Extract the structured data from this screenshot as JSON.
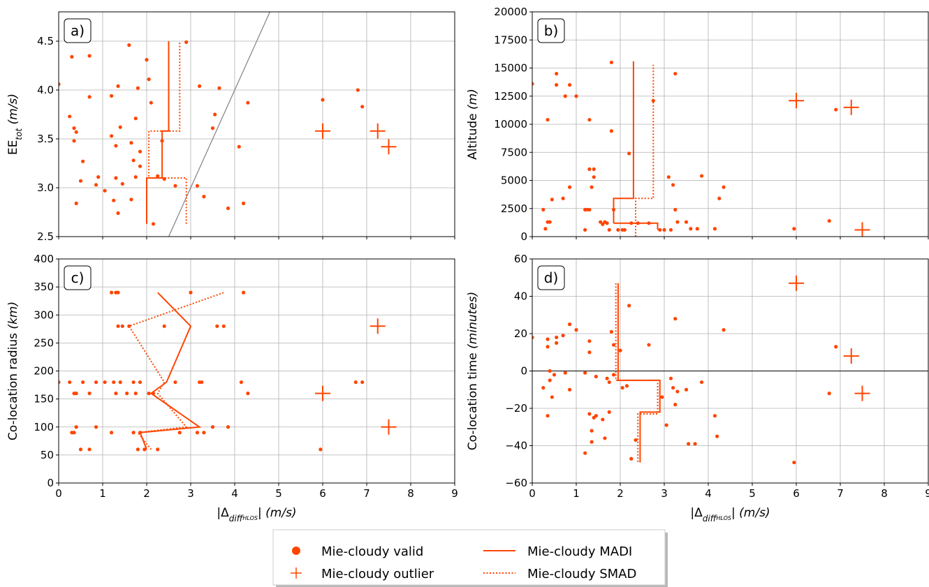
{
  "colors": {
    "series": "#ff4500",
    "grid": "#b0b0b0",
    "identity_line": "#808080",
    "zero_line": "#000000"
  },
  "legend": {
    "items": [
      {
        "label": "Mie-cloudy valid",
        "marker": "dot"
      },
      {
        "label": "Mie-cloudy outlier",
        "marker": "plus"
      },
      {
        "label": "Mie-cloudy MADI",
        "marker": "solid-line"
      },
      {
        "label": "Mie-cloudy SMAD",
        "marker": "dotted-line"
      }
    ]
  },
  "chart_data": [
    {
      "panel": "a)",
      "type": "scatter",
      "xlabel": "",
      "ylabel_main": "EE",
      "ylabel_sub": "tot",
      "ylabel_unit": "(m/s)",
      "xlim": [
        0,
        9
      ],
      "ylim": [
        2.5,
        4.8
      ],
      "xticks": [
        0,
        1,
        2,
        3,
        4,
        5,
        6,
        7,
        8,
        9
      ],
      "yticks": [
        2.5,
        3.0,
        3.5,
        4.0,
        4.5
      ],
      "ytick_labels": [
        "2.5",
        "3.0",
        "3.5",
        "4.0",
        "4.5"
      ],
      "show_xtick_labels": false,
      "grid": true,
      "valid": [
        [
          0.0,
          4.06
        ],
        [
          0.25,
          3.73
        ],
        [
          0.3,
          4.34
        ],
        [
          0.35,
          3.61
        ],
        [
          0.35,
          3.48
        ],
        [
          0.4,
          3.57
        ],
        [
          0.4,
          2.84
        ],
        [
          0.5,
          3.07
        ],
        [
          0.55,
          3.27
        ],
        [
          0.7,
          4.35
        ],
        [
          0.7,
          3.93
        ],
        [
          0.85,
          3.03
        ],
        [
          0.9,
          3.11
        ],
        [
          1.05,
          2.97
        ],
        [
          1.2,
          3.94
        ],
        [
          1.2,
          3.53
        ],
        [
          1.25,
          2.87
        ],
        [
          1.3,
          3.43
        ],
        [
          1.3,
          3.1
        ],
        [
          1.35,
          4.04
        ],
        [
          1.35,
          2.74
        ],
        [
          1.4,
          3.62
        ],
        [
          1.45,
          3.04
        ],
        [
          1.6,
          4.46
        ],
        [
          1.65,
          2.88
        ],
        [
          1.65,
          3.46
        ],
        [
          1.7,
          3.28
        ],
        [
          1.75,
          3.71
        ],
        [
          1.75,
          3.11
        ],
        [
          1.8,
          4.02
        ],
        [
          1.85,
          3.37
        ],
        [
          1.85,
          3.22
        ],
        [
          2.0,
          4.31
        ],
        [
          2.05,
          4.11
        ],
        [
          2.1,
          3.87
        ],
        [
          2.15,
          2.63
        ],
        [
          2.25,
          3.12
        ],
        [
          2.35,
          3.48
        ],
        [
          2.4,
          3.09
        ],
        [
          2.65,
          3.02
        ],
        [
          2.9,
          4.49
        ],
        [
          3.15,
          3.02
        ],
        [
          3.2,
          4.04
        ],
        [
          3.3,
          2.91
        ],
        [
          3.5,
          3.61
        ],
        [
          3.55,
          3.75
        ],
        [
          3.65,
          4.02
        ],
        [
          3.85,
          2.79
        ],
        [
          4.1,
          3.42
        ],
        [
          4.2,
          2.84
        ],
        [
          4.3,
          3.87
        ],
        [
          6.0,
          3.9
        ],
        [
          6.8,
          4.0
        ],
        [
          6.9,
          3.83
        ]
      ],
      "outliers": [
        [
          6.0,
          3.58
        ],
        [
          7.25,
          3.58
        ],
        [
          7.5,
          3.42
        ]
      ],
      "madi": [
        [
          2.0,
          2.63
        ],
        [
          2.0,
          3.1
        ],
        [
          2.35,
          3.1
        ],
        [
          2.35,
          3.58
        ],
        [
          2.5,
          3.58
        ],
        [
          2.5,
          4.5
        ]
      ],
      "smad": [
        [
          2.9,
          2.63
        ],
        [
          2.9,
          3.1
        ],
        [
          2.05,
          3.1
        ],
        [
          2.05,
          3.58
        ],
        [
          2.75,
          3.58
        ],
        [
          2.75,
          4.5
        ]
      ],
      "identity_line": [
        [
          2.5,
          2.5
        ],
        [
          4.8,
          4.8
        ]
      ]
    },
    {
      "panel": "b)",
      "type": "scatter",
      "xlabel": "",
      "ylabel_main": "Altitude",
      "ylabel_unit": "(m)",
      "xlim": [
        0,
        9
      ],
      "ylim": [
        0,
        20000
      ],
      "xticks": [
        0,
        1,
        2,
        3,
        4,
        5,
        6,
        7,
        8,
        9
      ],
      "yticks": [
        0,
        2500,
        5000,
        7500,
        10000,
        12500,
        15000,
        17500,
        20000
      ],
      "ytick_labels": [
        "0",
        "2500",
        "5000",
        "7500",
        "10000",
        "12500",
        "15000",
        "17500",
        "20000"
      ],
      "show_xtick_labels": false,
      "grid": true,
      "valid": [
        [
          0.0,
          13600
        ],
        [
          0.25,
          2400
        ],
        [
          0.3,
          700
        ],
        [
          0.35,
          1300
        ],
        [
          0.35,
          10400
        ],
        [
          0.4,
          1300
        ],
        [
          0.45,
          3300
        ],
        [
          0.55,
          14500
        ],
        [
          0.55,
          13500
        ],
        [
          0.7,
          3400
        ],
        [
          0.75,
          12500
        ],
        [
          0.85,
          4400
        ],
        [
          0.85,
          13500
        ],
        [
          1.0,
          12500
        ],
        [
          1.2,
          600
        ],
        [
          1.2,
          2400
        ],
        [
          1.25,
          2400
        ],
        [
          1.3,
          10400
        ],
        [
          1.3,
          2400
        ],
        [
          1.3,
          6000
        ],
        [
          1.35,
          4400
        ],
        [
          1.4,
          6000
        ],
        [
          1.4,
          5300
        ],
        [
          1.55,
          1300
        ],
        [
          1.6,
          1100
        ],
        [
          1.65,
          1300
        ],
        [
          1.7,
          1200
        ],
        [
          1.75,
          600
        ],
        [
          1.8,
          15500
        ],
        [
          1.8,
          9400
        ],
        [
          1.85,
          2400
        ],
        [
          1.95,
          600
        ],
        [
          2.05,
          600
        ],
        [
          2.1,
          600
        ],
        [
          2.2,
          7400
        ],
        [
          2.25,
          1200
        ],
        [
          2.4,
          1200
        ],
        [
          2.65,
          1200
        ],
        [
          2.75,
          12100
        ],
        [
          2.9,
          600
        ],
        [
          3.0,
          600
        ],
        [
          3.1,
          5300
        ],
        [
          3.15,
          600
        ],
        [
          3.2,
          4600
        ],
        [
          3.25,
          14500
        ],
        [
          3.25,
          2400
        ],
        [
          3.3,
          1300
        ],
        [
          3.5,
          1300
        ],
        [
          3.6,
          700
        ],
        [
          3.75,
          700
        ],
        [
          3.85,
          5400
        ],
        [
          4.15,
          700
        ],
        [
          4.25,
          3400
        ],
        [
          4.35,
          4400
        ],
        [
          5.95,
          700
        ],
        [
          6.75,
          1400
        ],
        [
          6.9,
          11300
        ]
      ],
      "outliers": [
        [
          6.0,
          12100
        ],
        [
          7.25,
          11500
        ],
        [
          7.5,
          600
        ]
      ],
      "madi": [
        [
          1.85,
          1200
        ],
        [
          1.85,
          3400
        ],
        [
          2.3,
          3400
        ],
        [
          2.3,
          15600
        ]
      ],
      "madi_base": [
        [
          1.85,
          1200
        ],
        [
          2.85,
          1200
        ],
        [
          2.85,
          600
        ]
      ],
      "smad": [
        [
          2.35,
          0
        ],
        [
          2.35,
          3400
        ],
        [
          2.75,
          3400
        ],
        [
          2.75,
          15300
        ]
      ]
    },
    {
      "panel": "c)",
      "type": "scatter",
      "xlabel": "|Δ",
      "xlabel_sub": "diff",
      "xlabel_subsub": "HLOS",
      "xlabel_unit": "| (m/s)",
      "ylabel_main": "Co-location radius",
      "ylabel_unit": "(km)",
      "xlim": [
        0,
        9
      ],
      "ylim": [
        0,
        400
      ],
      "xticks": [
        0,
        1,
        2,
        3,
        4,
        5,
        6,
        7,
        8,
        9
      ],
      "yticks": [
        0,
        50,
        100,
        150,
        200,
        250,
        300,
        350,
        400
      ],
      "ytick_labels": [
        "0",
        "50",
        "100",
        "150",
        "200",
        "250",
        "300",
        "350",
        "400"
      ],
      "show_xtick_labels": true,
      "grid": true,
      "valid": [
        [
          0.0,
          180
        ],
        [
          0.25,
          180
        ],
        [
          0.3,
          90
        ],
        [
          0.35,
          160
        ],
        [
          0.35,
          90
        ],
        [
          0.4,
          160
        ],
        [
          0.4,
          100
        ],
        [
          0.5,
          60
        ],
        [
          0.55,
          180
        ],
        [
          0.7,
          60
        ],
        [
          0.7,
          160
        ],
        [
          0.85,
          100
        ],
        [
          0.85,
          180
        ],
        [
          1.05,
          180
        ],
        [
          1.2,
          90
        ],
        [
          1.2,
          340
        ],
        [
          1.25,
          180
        ],
        [
          1.3,
          340
        ],
        [
          1.3,
          160
        ],
        [
          1.35,
          280
        ],
        [
          1.35,
          340
        ],
        [
          1.4,
          180
        ],
        [
          1.45,
          280
        ],
        [
          1.55,
          160
        ],
        [
          1.6,
          280
        ],
        [
          1.7,
          90
        ],
        [
          1.7,
          180
        ],
        [
          1.75,
          160
        ],
        [
          1.8,
          60
        ],
        [
          1.85,
          90
        ],
        [
          1.85,
          180
        ],
        [
          1.95,
          60
        ],
        [
          2.05,
          160
        ],
        [
          2.15,
          160
        ],
        [
          2.25,
          60
        ],
        [
          2.4,
          280
        ],
        [
          2.65,
          180
        ],
        [
          2.75,
          90
        ],
        [
          3.0,
          340
        ],
        [
          3.15,
          90
        ],
        [
          3.2,
          180
        ],
        [
          3.25,
          180
        ],
        [
          3.3,
          90
        ],
        [
          3.5,
          100
        ],
        [
          3.6,
          280
        ],
        [
          3.75,
          280
        ],
        [
          3.85,
          100
        ],
        [
          4.15,
          180
        ],
        [
          4.2,
          340
        ],
        [
          4.3,
          160
        ],
        [
          5.95,
          60
        ],
        [
          6.75,
          180
        ],
        [
          6.9,
          180
        ]
      ],
      "outliers": [
        [
          6.0,
          160
        ],
        [
          7.25,
          280
        ],
        [
          7.5,
          100
        ]
      ],
      "madi": [
        [
          2.0,
          60
        ],
        [
          1.85,
          90
        ],
        [
          3.2,
          100
        ],
        [
          2.1,
          160
        ],
        [
          2.45,
          180
        ],
        [
          3.0,
          280
        ],
        [
          2.25,
          340
        ]
      ],
      "smad": [
        [
          2.1,
          60
        ],
        [
          1.8,
          90
        ],
        [
          2.9,
          100
        ],
        [
          2.25,
          160
        ],
        [
          2.4,
          180
        ],
        [
          1.6,
          280
        ],
        [
          3.75,
          340
        ]
      ]
    },
    {
      "panel": "d)",
      "type": "scatter",
      "xlabel": "|Δ",
      "xlabel_sub": "diff",
      "xlabel_subsub": "HLOS",
      "xlabel_unit": "| (m/s)",
      "ylabel_main": "Co-location time",
      "ylabel_unit": "(minutes)",
      "xlim": [
        0,
        9
      ],
      "ylim": [
        -60,
        60
      ],
      "xticks": [
        0,
        1,
        2,
        3,
        4,
        5,
        6,
        7,
        8,
        9
      ],
      "yticks": [
        -60,
        -40,
        -20,
        0,
        20,
        40,
        60
      ],
      "ytick_labels": [
        "−60",
        "−40",
        "−20",
        "0",
        "20",
        "40",
        "60"
      ],
      "show_xtick_labels": true,
      "grid": true,
      "zero_line": 0,
      "valid": [
        [
          0.0,
          18
        ],
        [
          0.25,
          -9
        ],
        [
          0.35,
          -24
        ],
        [
          0.35,
          17
        ],
        [
          0.35,
          13
        ],
        [
          0.4,
          0
        ],
        [
          0.4,
          -5
        ],
        [
          0.45,
          -14
        ],
        [
          0.5,
          -2
        ],
        [
          0.55,
          18
        ],
        [
          0.55,
          15
        ],
        [
          0.7,
          19
        ],
        [
          0.75,
          -1
        ],
        [
          0.85,
          25
        ],
        [
          0.85,
          -10
        ],
        [
          1.0,
          22
        ],
        [
          1.2,
          -44
        ],
        [
          1.2,
          -1
        ],
        [
          1.3,
          16
        ],
        [
          1.3,
          10
        ],
        [
          1.3,
          -23
        ],
        [
          1.35,
          -38
        ],
        [
          1.35,
          -32
        ],
        [
          1.4,
          -25
        ],
        [
          1.45,
          -3
        ],
        [
          1.45,
          -24
        ],
        [
          1.6,
          -26
        ],
        [
          1.65,
          -36
        ],
        [
          1.7,
          -4
        ],
        [
          1.75,
          -22
        ],
        [
          1.75,
          -6
        ],
        [
          1.8,
          21
        ],
        [
          1.85,
          14
        ],
        [
          1.85,
          -2
        ],
        [
          2.0,
          11
        ],
        [
          2.05,
          -9
        ],
        [
          2.15,
          -8
        ],
        [
          2.2,
          35
        ],
        [
          2.25,
          -47
        ],
        [
          2.35,
          -37
        ],
        [
          2.65,
          14
        ],
        [
          2.95,
          -14
        ],
        [
          3.05,
          -29
        ],
        [
          3.15,
          -4
        ],
        [
          3.2,
          -9
        ],
        [
          3.25,
          -18
        ],
        [
          3.25,
          28
        ],
        [
          3.3,
          -11
        ],
        [
          3.5,
          -10
        ],
        [
          3.55,
          -39
        ],
        [
          3.7,
          -39
        ],
        [
          3.85,
          -6
        ],
        [
          4.15,
          -24
        ],
        [
          4.2,
          -35
        ],
        [
          4.35,
          22
        ],
        [
          5.95,
          -49
        ],
        [
          6.75,
          -12
        ],
        [
          6.9,
          13
        ]
      ],
      "outliers": [
        [
          6.0,
          47
        ],
        [
          7.25,
          8
        ],
        [
          7.5,
          -12
        ]
      ],
      "madi": [
        [
          1.95,
          47
        ],
        [
          1.95,
          -5
        ],
        [
          2.9,
          -5
        ],
        [
          2.9,
          -22
        ],
        [
          2.45,
          -22
        ],
        [
          2.45,
          -49
        ]
      ],
      "smad": [
        [
          1.9,
          47
        ],
        [
          1.9,
          -5
        ],
        [
          2.85,
          -5
        ],
        [
          2.85,
          -23
        ],
        [
          2.4,
          -23
        ],
        [
          2.4,
          -49
        ]
      ]
    }
  ]
}
